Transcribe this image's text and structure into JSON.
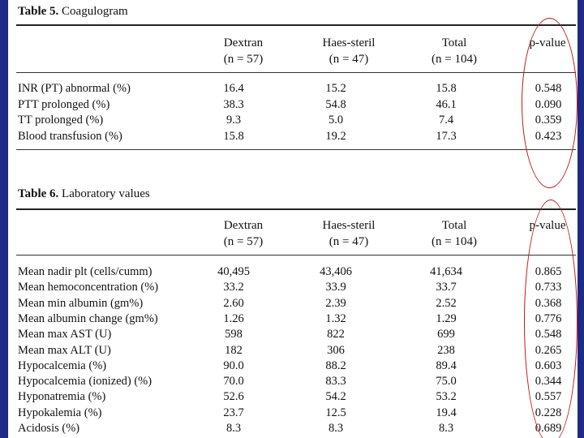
{
  "table5": {
    "caption_num": "Table 5.",
    "caption_text": "Coagulogram",
    "headers": {
      "c1_line1": "Dextran",
      "c1_line2": "(n = 57)",
      "c2_line1": "Haes-steril",
      "c2_line2": "(n = 47)",
      "c3_line1": "Total",
      "c3_line2": "(n = 104)",
      "c4_line1": "p-value"
    },
    "rows": [
      {
        "label": "INR (PT) abnormal (%)",
        "dextran": "16.4",
        "haes": "15.2",
        "total": "15.8",
        "p": "0.548"
      },
      {
        "label": "PTT prolonged (%)",
        "dextran": "38.3",
        "haes": "54.8",
        "total": "46.1",
        "p": "0.090"
      },
      {
        "label": "TT prolonged (%)",
        "dextran": "9.3",
        "haes": "5.0",
        "total": "7.4",
        "p": "0.359"
      },
      {
        "label": "Blood transfusion (%)",
        "dextran": "15.8",
        "haes": "19.2",
        "total": "17.3",
        "p": "0.423"
      }
    ]
  },
  "table6": {
    "caption_num": "Table 6.",
    "caption_text": "Laboratory values",
    "headers": {
      "c1_line1": "Dextran",
      "c1_line2": "(n = 57)",
      "c2_line1": "Haes-steril",
      "c2_line2": "(n = 47)",
      "c3_line1": "Total",
      "c3_line2": "(n = 104)",
      "c4_line1": "p-value"
    },
    "rows": [
      {
        "label": "Mean nadir plt (cells/cumm)",
        "dextran": "40,495",
        "haes": "43,406",
        "total": "41,634",
        "p": "0.865"
      },
      {
        "label": "Mean hemoconcentration (%)",
        "dextran": "33.2",
        "haes": "33.9",
        "total": "33.7",
        "p": "0.733"
      },
      {
        "label": "Mean min albumin (gm%)",
        "dextran": "2.60",
        "haes": "2.39",
        "total": "2.52",
        "p": "0.368"
      },
      {
        "label": "Mean albumin change (gm%)",
        "dextran": "1.26",
        "haes": "1.32",
        "total": "1.29",
        "p": "0.776"
      },
      {
        "label": "Mean max AST (U)",
        "dextran": "598",
        "haes": "822",
        "total": "699",
        "p": "0.548"
      },
      {
        "label": "Mean max ALT (U)",
        "dextran": "182",
        "haes": "306",
        "total": "238",
        "p": "0.265"
      },
      {
        "label": "Hypocalcemia (%)",
        "dextran": "90.0",
        "haes": "88.2",
        "total": "89.4",
        "p": "0.603"
      },
      {
        "label": "Hypocalcemia (ionized) (%)",
        "dextran": "70.0",
        "haes": "83.3",
        "total": "75.0",
        "p": "0.344"
      },
      {
        "label": "Hyponatremia (%)",
        "dextran": "52.6",
        "haes": "54.2",
        "total": "53.2",
        "p": "0.557"
      },
      {
        "label": "Hypokalemia (%)",
        "dextran": "23.7",
        "haes": "12.5",
        "total": "19.4",
        "p": "0.228"
      },
      {
        "label": "Acidosis (%)",
        "dextran": "8.3",
        "haes": "8.3",
        "total": "8.3",
        "p": "0.689"
      }
    ]
  },
  "colors": {
    "background": "#1e2a86",
    "annotation_oval": "#c01616"
  }
}
